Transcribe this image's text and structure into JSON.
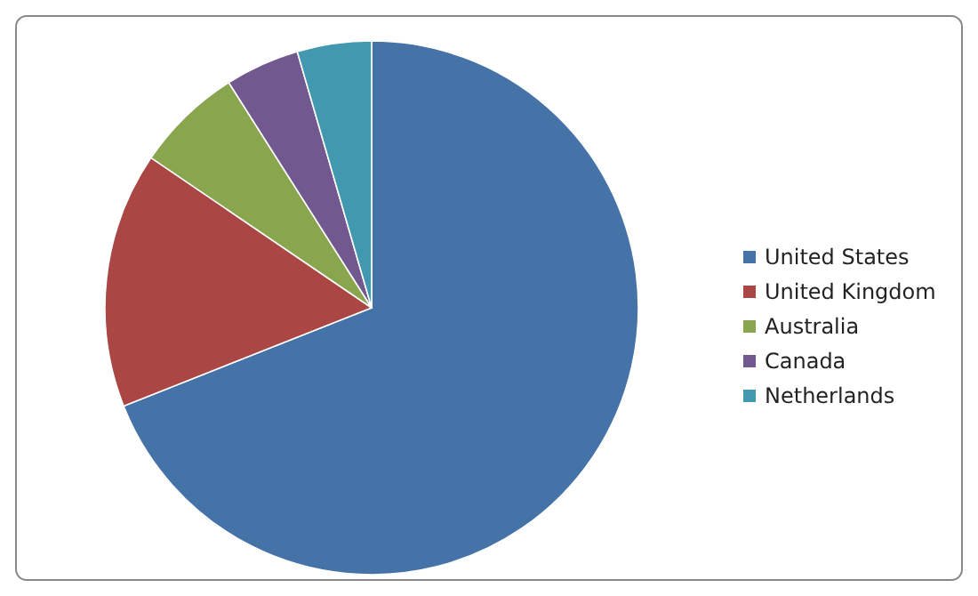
{
  "chart_data": {
    "type": "pie",
    "categories": [
      "United States",
      "United Kingdom",
      "Australia",
      "Canada",
      "Netherlands"
    ],
    "values": [
      69,
      15.5,
      6.5,
      4.5,
      4.5
    ],
    "colors": [
      "#4572a7",
      "#aa4643",
      "#89a54e",
      "#71588f",
      "#4198af"
    ],
    "legend": "right"
  }
}
